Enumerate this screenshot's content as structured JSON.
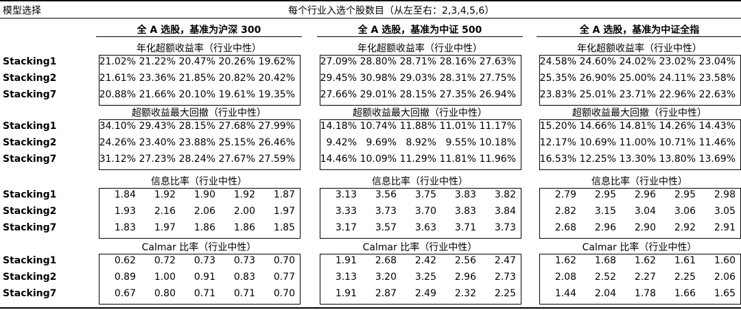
{
  "header": {
    "left_title": "模型选择",
    "center_title": "每个行业入选个股数目（从左至右：2,3,4,5,6）"
  },
  "groups": [
    {
      "title": "全 A 选股，基准为沪深 300"
    },
    {
      "title": "全 A 选股，基准为中证 500"
    },
    {
      "title": "全 A 选股，基准为中证全指"
    }
  ],
  "sections": [
    {
      "title": "年化超额收益率（行业中性）",
      "rows": [
        {
          "label": "Stacking1",
          "values": [
            [
              "21.02%",
              "21.22%",
              "20.47%",
              "20.26%",
              "19.62%"
            ],
            [
              "27.09%",
              "28.80%",
              "28.71%",
              "28.16%",
              "27.63%"
            ],
            [
              "24.58%",
              "24.60%",
              "24.02%",
              "23.02%",
              "23.04%"
            ]
          ]
        },
        {
          "label": "Stacking2",
          "values": [
            [
              "21.61%",
              "23.36%",
              "21.85%",
              "20.82%",
              "20.42%"
            ],
            [
              "29.45%",
              "30.98%",
              "29.03%",
              "28.31%",
              "27.75%"
            ],
            [
              "25.35%",
              "26.90%",
              "25.00%",
              "24.11%",
              "23.58%"
            ]
          ]
        },
        {
          "label": "Stacking7",
          "values": [
            [
              "20.88%",
              "21.66%",
              "20.10%",
              "19.61%",
              "19.35%"
            ],
            [
              "27.66%",
              "29.01%",
              "28.15%",
              "27.35%",
              "26.94%"
            ],
            [
              "23.83%",
              "25.01%",
              "23.71%",
              "22.96%",
              "22.63%"
            ]
          ]
        }
      ]
    },
    {
      "title": "超额收益最大回撤（行业中性）",
      "rows": [
        {
          "label": "Stacking1",
          "values": [
            [
              "34.10%",
              "29.43%",
              "28.15%",
              "27.68%",
              "27.99%"
            ],
            [
              "14.18%",
              "10.74%",
              "11.88%",
              "11.01%",
              "11.17%"
            ],
            [
              "15.20%",
              "14.66%",
              "14.81%",
              "14.26%",
              "14.43%"
            ]
          ]
        },
        {
          "label": "Stacking2",
          "values": [
            [
              "24.26%",
              "23.40%",
              "23.88%",
              "25.15%",
              "26.46%"
            ],
            [
              "9.42%",
              "9.69%",
              "8.92%",
              "9.55%",
              "10.18%"
            ],
            [
              "12.17%",
              "10.69%",
              "11.00%",
              "10.71%",
              "11.46%"
            ]
          ]
        },
        {
          "label": "Stacking7",
          "values": [
            [
              "31.12%",
              "27.23%",
              "28.24%",
              "27.67%",
              "27.59%"
            ],
            [
              "14.46%",
              "10.09%",
              "11.29%",
              "11.81%",
              "11.96%"
            ],
            [
              "16.53%",
              "12.25%",
              "13.30%",
              "13.80%",
              "13.69%"
            ]
          ]
        }
      ]
    },
    {
      "title": "信息比率（行业中性）",
      "rows": [
        {
          "label": "Stacking1",
          "values": [
            [
              "1.84",
              "1.92",
              "1.90",
              "1.92",
              "1.87"
            ],
            [
              "3.13",
              "3.56",
              "3.75",
              "3.83",
              "3.82"
            ],
            [
              "2.79",
              "2.95",
              "2.96",
              "2.95",
              "2.98"
            ]
          ]
        },
        {
          "label": "Stacking2",
          "values": [
            [
              "1.93",
              "2.16",
              "2.06",
              "2.00",
              "1.97"
            ],
            [
              "3.33",
              "3.73",
              "3.70",
              "3.83",
              "3.84"
            ],
            [
              "2.82",
              "3.15",
              "3.04",
              "3.06",
              "3.05"
            ]
          ]
        },
        {
          "label": "Stacking7",
          "values": [
            [
              "1.83",
              "1.97",
              "1.86",
              "1.86",
              "1.85"
            ],
            [
              "3.17",
              "3.57",
              "3.63",
              "3.71",
              "3.73"
            ],
            [
              "2.68",
              "2.96",
              "2.90",
              "2.92",
              "2.91"
            ]
          ]
        }
      ]
    },
    {
      "title": "Calmar 比率（行业中性）",
      "rows": [
        {
          "label": "Stacking1",
          "values": [
            [
              "0.62",
              "0.72",
              "0.73",
              "0.73",
              "0.70"
            ],
            [
              "1.91",
              "2.68",
              "2.42",
              "2.56",
              "2.47"
            ],
            [
              "1.62",
              "1.68",
              "1.62",
              "1.61",
              "1.60"
            ]
          ]
        },
        {
          "label": "Stacking2",
          "values": [
            [
              "0.89",
              "1.00",
              "0.91",
              "0.83",
              "0.77"
            ],
            [
              "3.13",
              "3.20",
              "3.25",
              "2.96",
              "2.73"
            ],
            [
              "2.08",
              "2.52",
              "2.27",
              "2.25",
              "2.06"
            ]
          ]
        },
        {
          "label": "Stacking7",
          "values": [
            [
              "0.67",
              "0.80",
              "0.71",
              "0.71",
              "0.70"
            ],
            [
              "1.91",
              "2.87",
              "2.49",
              "2.32",
              "2.25"
            ],
            [
              "1.44",
              "2.04",
              "1.78",
              "1.66",
              "1.65"
            ]
          ]
        }
      ]
    }
  ]
}
